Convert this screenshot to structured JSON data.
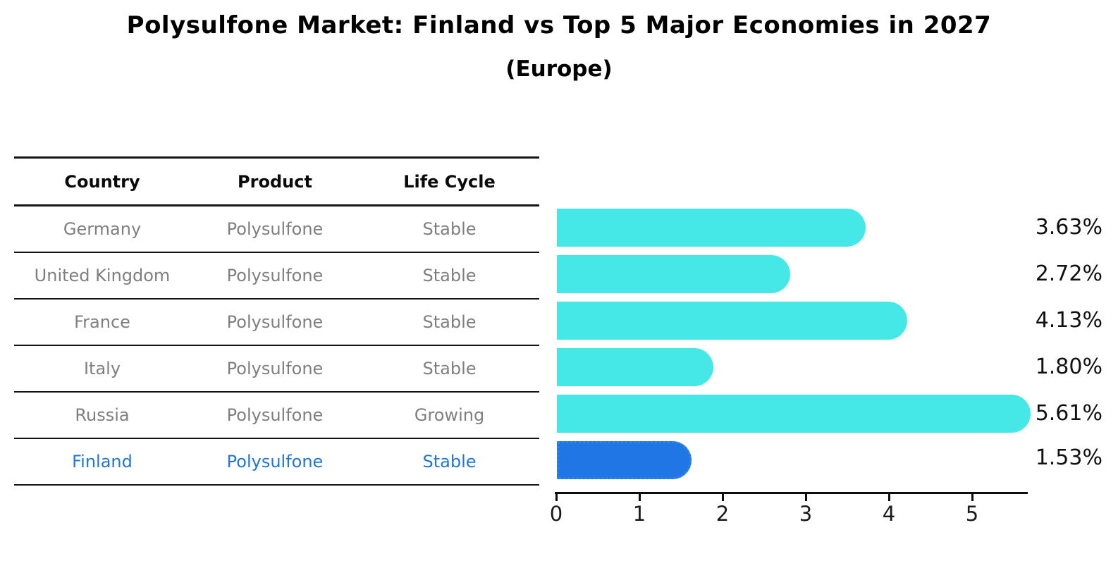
{
  "title": "Polysulfone Market: Finland vs Top 5 Major Economies in 2027",
  "subtitle": "(Europe)",
  "table": {
    "headers": [
      "Country",
      "Product",
      "Life Cycle"
    ],
    "rows": [
      {
        "country": "Germany",
        "product": "Polysulfone",
        "life_cycle": "Stable"
      },
      {
        "country": "United Kingdom",
        "product": "Polysulfone",
        "life_cycle": "Stable"
      },
      {
        "country": "France",
        "product": "Polysulfone",
        "life_cycle": "Stable"
      },
      {
        "country": "Italy",
        "product": "Polysulfone",
        "life_cycle": "Stable"
      },
      {
        "country": "Russia",
        "product": "Polysulfone",
        "life_cycle": "Growing"
      },
      {
        "country": "Finland",
        "product": "Polysulfone",
        "life_cycle": "Stable"
      }
    ]
  },
  "chart_data": {
    "type": "bar",
    "orientation": "horizontal",
    "categories": [
      "Germany",
      "United Kingdom",
      "France",
      "Italy",
      "Russia",
      "Finland"
    ],
    "values": [
      3.63,
      2.72,
      4.13,
      1.8,
      5.61,
      1.53
    ],
    "value_labels": [
      "3.63%",
      "2.72%",
      "4.13%",
      "1.80%",
      "5.61%",
      "1.53%"
    ],
    "x_ticks": [
      "0",
      "1",
      "2",
      "3",
      "4",
      "5"
    ],
    "xlim": [
      0,
      5.68
    ],
    "grid": false,
    "legend": false,
    "highlight_index": 5,
    "bar_color": "#45e8e6",
    "highlight_bar_color": "#2176e6",
    "highlight_text_color": "#2176d9",
    "row_text_color": "#7f7f7f"
  }
}
